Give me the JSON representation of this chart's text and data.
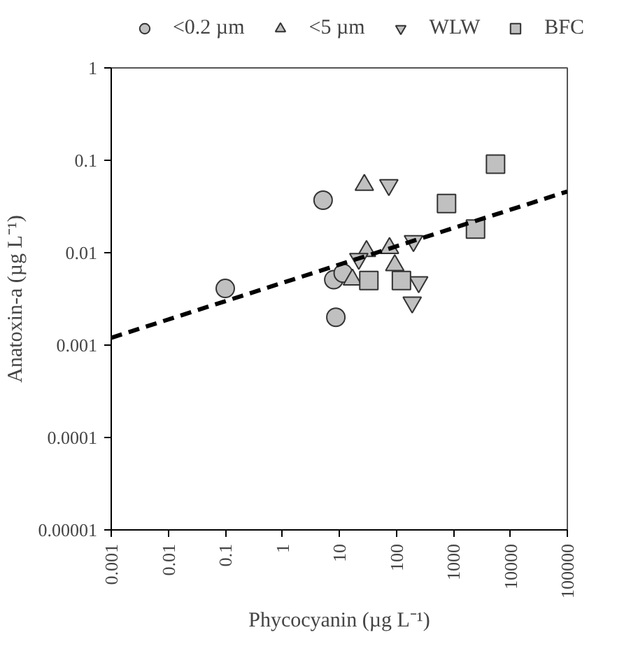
{
  "chart_data": {
    "type": "scatter",
    "xlabel": "Phycocyanin (µg L⁻¹)",
    "ylabel": "Anatoxin-a (µg L⁻¹)",
    "log": "xy",
    "xlim": [
      0.001,
      100000
    ],
    "xticks": [
      0.001,
      0.01,
      0.1,
      1,
      10,
      100,
      1000,
      10000,
      100000
    ],
    "ylim": [
      1e-05,
      1
    ],
    "yticks": [
      {
        "value": 1e-05,
        "label": "0.00001"
      },
      0.0001,
      0.001,
      0.01,
      0.1,
      1
    ],
    "grid": false,
    "legend": "top",
    "series": [
      {
        "name": "<0.2 µm",
        "color": "#c0c0c0",
        "marker": "circle",
        "x": [
          0.1,
          5.2,
          8,
          11.7,
          8.7
        ],
        "values": [
          0.0041,
          0.037,
          0.0051,
          0.006,
          0.002
        ]
      },
      {
        "name": "<5 µm",
        "color": "#c0c0c0",
        "marker": "triangle",
        "x": [
          27.5,
          30,
          76,
          94,
          17
        ],
        "values": [
          0.054,
          0.0104,
          0.0112,
          0.0073,
          0.0051
        ]
      },
      {
        "name": "WLW",
        "color": "#c0c0c0",
        "marker": "triangle_down",
        "x": [
          74,
          22,
          200,
          247,
          190
        ],
        "values": [
          0.054,
          0.0086,
          0.0134,
          0.0048,
          0.0029
        ]
      },
      {
        "name": "BFC",
        "color": "#c0c0c0",
        "marker": "square",
        "x": [
          5500,
          760,
          2450,
          33,
          123
        ],
        "values": [
          0.091,
          0.034,
          0.018,
          0.005,
          0.005
        ]
      },
      {
        "type": "line",
        "color": "#000000",
        "line_style": "dashed",
        "marker": "none",
        "x": [
          0.001,
          100000
        ],
        "values": [
          0.0012,
          0.046
        ]
      }
    ]
  }
}
